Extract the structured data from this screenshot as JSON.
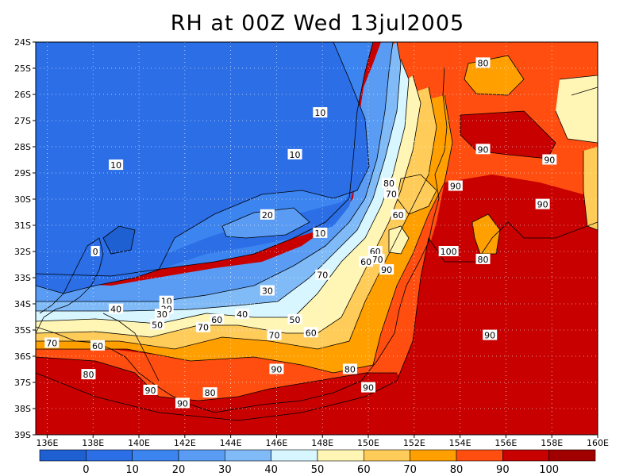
{
  "title": "RH at 00Z Wed 13jul2005",
  "map": {
    "lon_range": [
      135.5,
      160
    ],
    "lat_range": [
      -39,
      -24
    ],
    "lat_ticks": [
      "24S",
      "25S",
      "26S",
      "27S",
      "28S",
      "29S",
      "30S",
      "31S",
      "32S",
      "33S",
      "34S",
      "35S",
      "36S",
      "37S",
      "38S",
      "39S"
    ],
    "lon_ticks": [
      "136E",
      "138E",
      "140E",
      "142E",
      "144E",
      "146E",
      "148E",
      "150E",
      "152E",
      "154E",
      "156E",
      "158E",
      "160E"
    ],
    "gridlines": "dotted",
    "colorbar": {
      "labels": [
        "0",
        "10",
        "20",
        "30",
        "40",
        "50",
        "60",
        "70",
        "80",
        "90",
        "100"
      ],
      "colors": [
        "#1e5fd2",
        "#2b6ee6",
        "#3c84ef",
        "#5a9cf4",
        "#80bbf8",
        "#d7f6ff",
        "#fff5b4",
        "#ffcc5a",
        "#ffa000",
        "#ff4e10",
        "#c80000",
        "#a00000"
      ]
    },
    "contour_labels": [
      {
        "text": "80",
        "lon": 155.0,
        "lat": -24.8
      },
      {
        "text": "10",
        "lon": 147.9,
        "lat": -26.7
      },
      {
        "text": "90",
        "lon": 155.0,
        "lat": -28.1
      },
      {
        "text": "10",
        "lon": 146.8,
        "lat": -28.3
      },
      {
        "text": "90",
        "lon": 157.9,
        "lat": -28.5
      },
      {
        "text": "10",
        "lon": 139.0,
        "lat": -28.7
      },
      {
        "text": "80",
        "lon": 150.9,
        "lat": -29.4
      },
      {
        "text": "70",
        "lon": 151.0,
        "lat": -29.8
      },
      {
        "text": "90",
        "lon": 153.8,
        "lat": -29.5
      },
      {
        "text": "20",
        "lon": 145.6,
        "lat": -30.6
      },
      {
        "text": "90",
        "lon": 157.6,
        "lat": -30.2
      },
      {
        "text": "60",
        "lon": 151.3,
        "lat": -30.6
      },
      {
        "text": "10",
        "lon": 147.9,
        "lat": -31.3
      },
      {
        "text": "0",
        "lon": 138.1,
        "lat": -32.0
      },
      {
        "text": "100",
        "lon": 153.5,
        "lat": -32.0
      },
      {
        "text": "60",
        "lon": 150.3,
        "lat": -32.0
      },
      {
        "text": "80",
        "lon": 155.0,
        "lat": -32.3
      },
      {
        "text": "70",
        "lon": 150.4,
        "lat": -32.3
      },
      {
        "text": "60",
        "lon": 149.9,
        "lat": -32.4
      },
      {
        "text": "90",
        "lon": 150.8,
        "lat": -32.7
      },
      {
        "text": "70",
        "lon": 148.0,
        "lat": -32.9
      },
      {
        "text": "30",
        "lon": 145.6,
        "lat": -33.5
      },
      {
        "text": "10",
        "lon": 141.2,
        "lat": -33.9
      },
      {
        "text": "20",
        "lon": 141.2,
        "lat": -34.2
      },
      {
        "text": "40",
        "lon": 139.0,
        "lat": -34.2
      },
      {
        "text": "30",
        "lon": 141.0,
        "lat": -34.4
      },
      {
        "text": "40",
        "lon": 144.5,
        "lat": -34.4
      },
      {
        "text": "60",
        "lon": 143.4,
        "lat": -34.6
      },
      {
        "text": "50",
        "lon": 146.8,
        "lat": -34.6
      },
      {
        "text": "50",
        "lon": 140.8,
        "lat": -34.8
      },
      {
        "text": "70",
        "lon": 142.8,
        "lat": -34.9
      },
      {
        "text": "60",
        "lon": 147.5,
        "lat": -35.1
      },
      {
        "text": "70",
        "lon": 145.9,
        "lat": -35.2
      },
      {
        "text": "90",
        "lon": 155.3,
        "lat": -35.2
      },
      {
        "text": "70",
        "lon": 136.2,
        "lat": -35.5
      },
      {
        "text": "60",
        "lon": 138.2,
        "lat": -35.6
      },
      {
        "text": "90",
        "lon": 146.0,
        "lat": -36.5
      },
      {
        "text": "80",
        "lon": 149.2,
        "lat": -36.5
      },
      {
        "text": "80",
        "lon": 137.8,
        "lat": -36.7
      },
      {
        "text": "90",
        "lon": 150.0,
        "lat": -37.2
      },
      {
        "text": "90",
        "lon": 140.5,
        "lat": -37.3
      },
      {
        "text": "80",
        "lon": 143.1,
        "lat": -37.4
      },
      {
        "text": "90",
        "lon": 141.9,
        "lat": -37.8
      }
    ]
  }
}
